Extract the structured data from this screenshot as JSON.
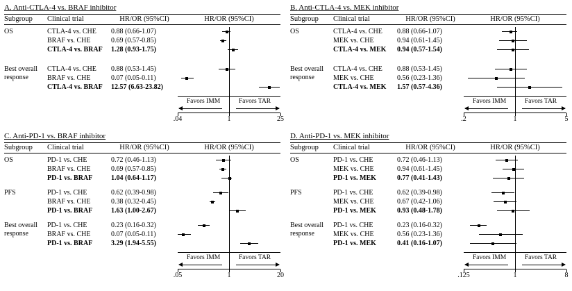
{
  "colors": {
    "background": "#ffffff",
    "text": "#000000",
    "marker": "#000000"
  },
  "chart_data": [
    {
      "type": "scatter",
      "variant": "forest-plot",
      "panel_label": "A.",
      "title": "Anti-CTLA-4 vs. BRAF inhibitor",
      "columns": [
        "Subgroup",
        "Clinical trial",
        "HR/OR (95%CI)",
        "HR/OR (95%CI)"
      ],
      "x_scale": "log",
      "xlim": [
        0.04,
        25
      ],
      "ref_line": 1,
      "ticks": [
        {
          "value": 0.04,
          "label": ".04"
        },
        {
          "value": 1,
          "label": "1"
        },
        {
          "value": 25,
          "label": "25"
        }
      ],
      "favors_left": "Favors IMM",
      "favors_right": "Favors TAR",
      "groups": [
        {
          "subgroup": "OS",
          "rows": [
            {
              "trial": "CTLA-4 vs. CHE",
              "hr_text": "0.88 (0.66-1.07)",
              "est": 0.88,
              "ci_low": 0.66,
              "ci_high": 1.07,
              "bold": false
            },
            {
              "trial": "BRAF vs. CHE",
              "hr_text": "0.69 (0.57-0.85)",
              "est": 0.69,
              "ci_low": 0.57,
              "ci_high": 0.85,
              "bold": false
            },
            {
              "trial": "CTLA-4 vs. BRAF",
              "hr_text": "1.28 (0.93-1.75)",
              "est": 1.28,
              "ci_low": 0.93,
              "ci_high": 1.75,
              "bold": true
            }
          ]
        },
        {
          "subgroup": "Best overall response",
          "rows": [
            {
              "trial": "CTLA-4 vs. CHE",
              "hr_text": "0.88 (0.53-1.45)",
              "est": 0.88,
              "ci_low": 0.53,
              "ci_high": 1.45,
              "bold": false
            },
            {
              "trial": "BRAF vs. CHE",
              "hr_text": "0.07 (0.05-0.11)",
              "est": 0.07,
              "ci_low": 0.05,
              "ci_high": 0.11,
              "bold": false
            },
            {
              "trial": "CTLA-4 vs. BRAF",
              "hr_text": "12.57 (6.63-23.82)",
              "est": 12.57,
              "ci_low": 6.63,
              "ci_high": 23.82,
              "bold": true
            }
          ]
        }
      ]
    },
    {
      "type": "scatter",
      "variant": "forest-plot",
      "panel_label": "B.",
      "title": "Anti-CTLA-4 vs. MEK inhibitor",
      "columns": [
        "Subgroup",
        "Clinical trial",
        "HR/OR (95%CI)",
        "HR/OR (95%CI)"
      ],
      "x_scale": "log",
      "xlim": [
        0.2,
        5
      ],
      "ref_line": 1,
      "ticks": [
        {
          "value": 0.2,
          "label": ".2"
        },
        {
          "value": 1,
          "label": "1"
        },
        {
          "value": 5,
          "label": "5"
        }
      ],
      "favors_left": "Favors IMM",
      "favors_right": "Favors TAR",
      "groups": [
        {
          "subgroup": "OS",
          "rows": [
            {
              "trial": "CTLA-4 vs. CHE",
              "hr_text": "0.88 (0.66-1.07)",
              "est": 0.88,
              "ci_low": 0.66,
              "ci_high": 1.07,
              "bold": false
            },
            {
              "trial": "MEK vs. CHE",
              "hr_text": "0.94 (0.61-1.45)",
              "est": 0.94,
              "ci_low": 0.61,
              "ci_high": 1.45,
              "bold": false
            },
            {
              "trial": "CTLA-4 vs. MEK",
              "hr_text": "0.94 (0.57-1.54)",
              "est": 0.94,
              "ci_low": 0.57,
              "ci_high": 1.54,
              "bold": true
            }
          ]
        },
        {
          "subgroup": "Best overall response",
          "rows": [
            {
              "trial": "CTLA-4 vs. CHE",
              "hr_text": "0.88 (0.53-1.45)",
              "est": 0.88,
              "ci_low": 0.53,
              "ci_high": 1.45,
              "bold": false
            },
            {
              "trial": "MEK vs. CHE",
              "hr_text": "0.56 (0.23-1.36)",
              "est": 0.56,
              "ci_low": 0.23,
              "ci_high": 1.36,
              "bold": false
            },
            {
              "trial": "CTLA-4 vs. MEK",
              "hr_text": "1.57 (0.57-4.36)",
              "est": 1.57,
              "ci_low": 0.57,
              "ci_high": 4.36,
              "bold": true
            }
          ]
        }
      ]
    },
    {
      "type": "scatter",
      "variant": "forest-plot",
      "panel_label": "C.",
      "title": "Anti-PD-1 vs. BRAF inhibitor",
      "columns": [
        "Subgroup",
        "Clinical trial",
        "HR/OR (95%CI)",
        "HR/OR (95%CI)"
      ],
      "x_scale": "log",
      "xlim": [
        0.05,
        20
      ],
      "ref_line": 1,
      "ticks": [
        {
          "value": 0.05,
          "label": ".05"
        },
        {
          "value": 1,
          "label": "1"
        },
        {
          "value": 20,
          "label": "20"
        }
      ],
      "favors_left": "Favors IMM",
      "favors_right": "Favors TAR",
      "groups": [
        {
          "subgroup": "OS",
          "rows": [
            {
              "trial": "PD-1 vs. CHE",
              "hr_text": "0.72 (0.46-1.13)",
              "est": 0.72,
              "ci_low": 0.46,
              "ci_high": 1.13,
              "bold": false
            },
            {
              "trial": "BRAF vs. CHE",
              "hr_text": "0.69 (0.57-0.85)",
              "est": 0.69,
              "ci_low": 0.57,
              "ci_high": 0.85,
              "bold": false
            },
            {
              "trial": "PD-1 vs. BRAF",
              "hr_text": "1.04 (0.64-1.17)",
              "est": 1.04,
              "ci_low": 0.64,
              "ci_high": 1.17,
              "bold": true
            }
          ]
        },
        {
          "subgroup": "PFS",
          "rows": [
            {
              "trial": "PD-1 vs. CHE",
              "hr_text": "0.62 (0.39-0.98)",
              "est": 0.62,
              "ci_low": 0.39,
              "ci_high": 0.98,
              "bold": false
            },
            {
              "trial": "BRAF vs. CHE",
              "hr_text": "0.38 (0.32-0.45)",
              "est": 0.38,
              "ci_low": 0.32,
              "ci_high": 0.45,
              "bold": false
            },
            {
              "trial": "PD-1 vs. BRAF",
              "hr_text": "1.63 (1.00-2.67)",
              "est": 1.63,
              "ci_low": 1.0,
              "ci_high": 2.67,
              "bold": true
            }
          ]
        },
        {
          "subgroup": "Best overall response",
          "rows": [
            {
              "trial": "PD-1 vs. CHE",
              "hr_text": "0.23 (0.16-0.32)",
              "est": 0.23,
              "ci_low": 0.16,
              "ci_high": 0.32,
              "bold": false
            },
            {
              "trial": "BRAF vs. CHE",
              "hr_text": "0.07 (0.05-0.11)",
              "est": 0.07,
              "ci_low": 0.05,
              "ci_high": 0.11,
              "bold": false
            },
            {
              "trial": "PD-1 vs. BRAF",
              "hr_text": "3.29 (1.94-5.55)",
              "est": 3.29,
              "ci_low": 1.94,
              "ci_high": 5.55,
              "bold": true
            }
          ]
        }
      ]
    },
    {
      "type": "scatter",
      "variant": "forest-plot",
      "panel_label": "D.",
      "title": "Anti-PD-1 vs. MEK inhibitor",
      "columns": [
        "Subgroup",
        "Clinical trial",
        "HR/OR (95%CI)",
        "HR/OR (95%CI)"
      ],
      "x_scale": "log",
      "xlim": [
        0.125,
        8
      ],
      "ref_line": 1,
      "ticks": [
        {
          "value": 0.125,
          "label": ".125"
        },
        {
          "value": 1,
          "label": "1"
        },
        {
          "value": 8,
          "label": "8"
        }
      ],
      "favors_left": "Favors IMM",
      "favors_right": "Favors TAR",
      "groups": [
        {
          "subgroup": "OS",
          "rows": [
            {
              "trial": "PD-1 vs. CHE",
              "hr_text": "0.72 (0.46-1.13)",
              "est": 0.72,
              "ci_low": 0.46,
              "ci_high": 1.13,
              "bold": false
            },
            {
              "trial": "MEK vs. CHE",
              "hr_text": "0.94 (0.61-1.45)",
              "est": 0.94,
              "ci_low": 0.61,
              "ci_high": 1.45,
              "bold": false
            },
            {
              "trial": "PD-1 vs. MEK",
              "hr_text": "0.77 (0.41-1.43)",
              "est": 0.77,
              "ci_low": 0.41,
              "ci_high": 1.43,
              "bold": true
            }
          ]
        },
        {
          "subgroup": "PFS",
          "rows": [
            {
              "trial": "PD-1 vs. CHE",
              "hr_text": "0.62 (0.39-0.98)",
              "est": 0.62,
              "ci_low": 0.39,
              "ci_high": 0.98,
              "bold": false
            },
            {
              "trial": "MEK vs. CHE",
              "hr_text": "0.67 (0.42-1.06)",
              "est": 0.67,
              "ci_low": 0.42,
              "ci_high": 1.06,
              "bold": false
            },
            {
              "trial": "PD-1 vs. MEK",
              "hr_text": "0.93 (0.48-1.78)",
              "est": 0.93,
              "ci_low": 0.48,
              "ci_high": 1.78,
              "bold": true
            }
          ]
        },
        {
          "subgroup": "Best overall response",
          "rows": [
            {
              "trial": "PD-1 vs. CHE",
              "hr_text": "0.23 (0.16-0.32)",
              "est": 0.23,
              "ci_low": 0.16,
              "ci_high": 0.32,
              "bold": false
            },
            {
              "trial": "MEK vs. CHE",
              "hr_text": "0.56 (0.23-1.36)",
              "est": 0.56,
              "ci_low": 0.23,
              "ci_high": 1.36,
              "bold": false
            },
            {
              "trial": "PD-1 vs. MEK",
              "hr_text": "0.41 (0.16-1.07)",
              "est": 0.41,
              "ci_low": 0.16,
              "ci_high": 1.07,
              "bold": true
            }
          ]
        }
      ]
    }
  ]
}
